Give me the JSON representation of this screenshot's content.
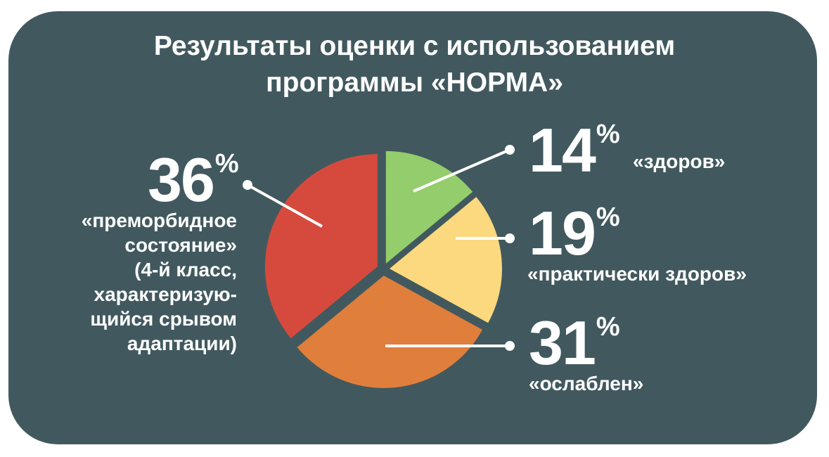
{
  "title": {
    "line1": "Результаты оценки с использованием",
    "line2": "программы «НОРМА»"
  },
  "colors": {
    "background": "#41595e",
    "text": "#ffffff",
    "healthy": "#94cd6c",
    "practically_healthy": "#fcd97e",
    "weakened": "#e07e3c",
    "premorbid": "#d64a3e"
  },
  "chart_data": {
    "type": "pie",
    "title": "Результаты оценки с использованием программы «НОРМА»",
    "unit": "%",
    "slices": [
      {
        "value": 14,
        "percent_number": "14",
        "percent_sign": "%",
        "label_lines": [
          "«здоров»"
        ],
        "color": "#94cd6c"
      },
      {
        "value": 19,
        "percent_number": "19",
        "percent_sign": "%",
        "label_lines": [
          "«практически здоров»"
        ],
        "color": "#fcd97e"
      },
      {
        "value": 31,
        "percent_number": "31",
        "percent_sign": "%",
        "label_lines": [
          "«ослаблен»"
        ],
        "color": "#e07e3c"
      },
      {
        "value": 36,
        "percent_number": "36",
        "percent_sign": "%",
        "label_lines": [
          "«преморбидное",
          "состояние»",
          "(4-й класс,",
          "характеризую-",
          "щийся срывом",
          "адаптации)"
        ],
        "color": "#d64a3e"
      }
    ]
  }
}
